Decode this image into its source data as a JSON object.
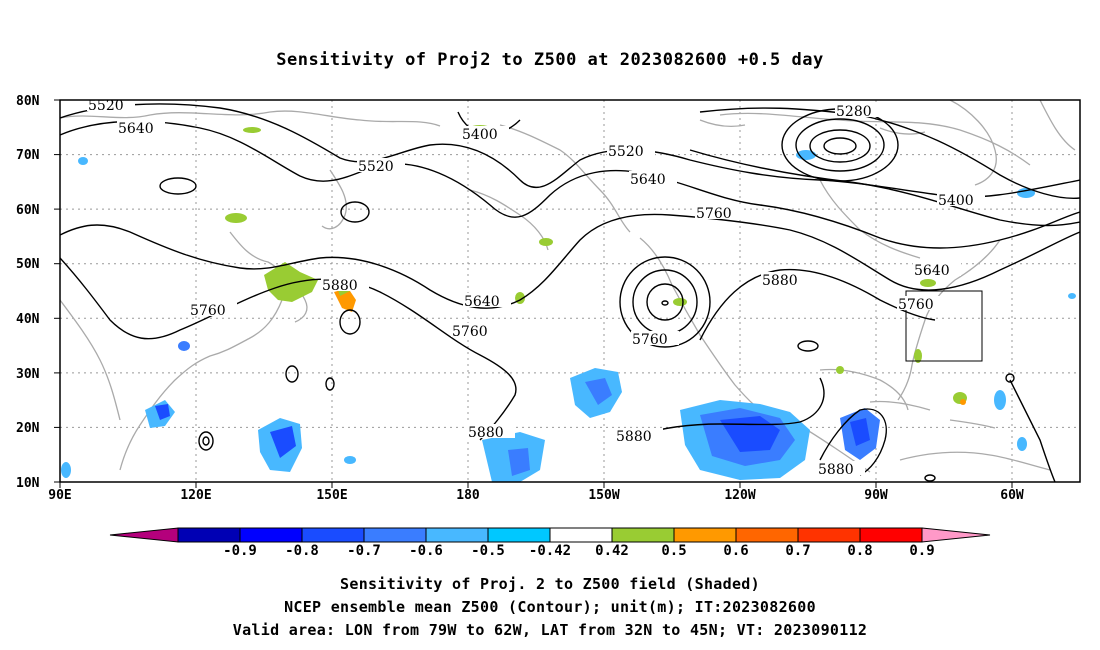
{
  "title": "Sensitivity of Proj2 to Z500 at 2023082600 +0.5 day",
  "map": {
    "lat_labels": [
      "80N",
      "70N",
      "60N",
      "50N",
      "40N",
      "30N",
      "20N",
      "10N"
    ],
    "lon_labels": [
      "90E",
      "120E",
      "150E",
      "180",
      "150W",
      "120W",
      "90W",
      "60W"
    ],
    "contour_levels": [
      {
        "text": "5520"
      },
      {
        "text": "5640"
      },
      {
        "text": "5520"
      },
      {
        "text": "5400"
      },
      {
        "text": "5280"
      },
      {
        "text": "5520"
      },
      {
        "text": "5640"
      },
      {
        "text": "5760"
      },
      {
        "text": "5400"
      },
      {
        "text": "5880"
      },
      {
        "text": "5760"
      },
      {
        "text": "5640"
      },
      {
        "text": "5760"
      },
      {
        "text": "5880"
      },
      {
        "text": "5760"
      },
      {
        "text": "5640"
      },
      {
        "text": "5880"
      },
      {
        "text": "5880"
      },
      {
        "text": "5880"
      }
    ],
    "valid_area": {
      "lon_from": "79W",
      "lon_to": "62W",
      "lat_from": "32N",
      "lat_to": "45N"
    }
  },
  "colorbar": {
    "labels": [
      "-0.9",
      "-0.8",
      "-0.7",
      "-0.6",
      "-0.5",
      "-0.42",
      "0.42",
      "0.5",
      "0.6",
      "0.7",
      "0.8",
      "0.9"
    ],
    "colors": [
      "#b4007c",
      "#0000b4",
      "#0000ff",
      "#1a4cff",
      "#3a7dff",
      "#48b8ff",
      "#00c8ff",
      "#ffffff",
      "#99cc33",
      "#ff9900",
      "#ff6600",
      "#ff3300",
      "#ff0000",
      "#ff99c8"
    ]
  },
  "footer": {
    "line1": "Sensitivity of Proj. 2 to Z500 field (Shaded)",
    "line2": "NCEP ensemble mean Z500 (Contour); unit(m); IT:2023082600",
    "line3": "Valid area: LON from 79W to 62W, LAT from 32N to 45N; VT: 2023090112"
  }
}
